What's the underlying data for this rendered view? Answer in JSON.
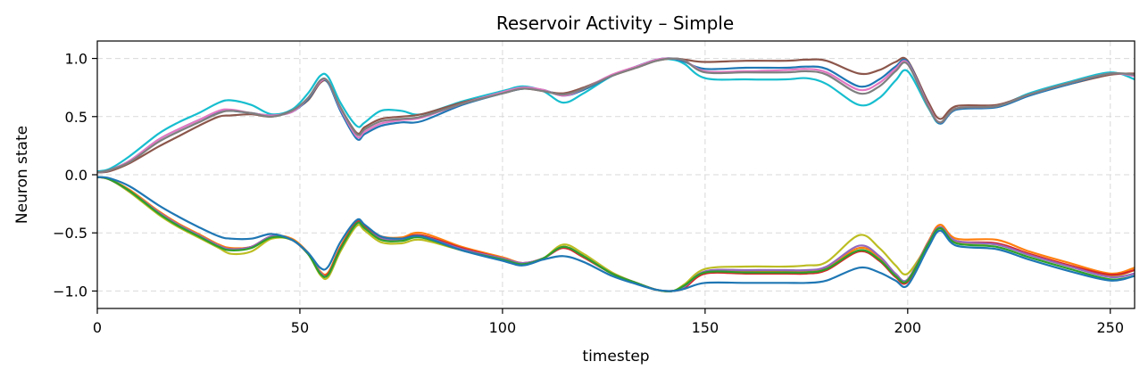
{
  "chart_data": {
    "type": "line",
    "title": "Reservoir Activity – Simple",
    "xlabel": "timestep",
    "ylabel": "Neuron state",
    "xlim": [
      0,
      256
    ],
    "ylim": [
      -1.15,
      1.15
    ],
    "x_ticks": [
      0,
      50,
      100,
      150,
      200,
      250
    ],
    "x_tick_labels": [
      "0",
      "50",
      "100",
      "150",
      "200",
      "250"
    ],
    "y_ticks": [
      1.0,
      0.5,
      0.0,
      -0.5,
      -1.0
    ],
    "y_tick_labels": [
      "1.0",
      "0.5",
      "0.0",
      "−0.5",
      "−1.0"
    ],
    "grid": true,
    "legend": "none",
    "x": [
      0,
      3,
      8,
      15,
      20,
      25,
      30,
      33,
      38,
      43,
      48,
      52,
      55,
      57,
      60,
      64,
      66,
      70,
      75,
      80,
      90,
      100,
      105,
      110,
      115,
      120,
      127,
      133,
      138,
      142,
      145,
      150,
      160,
      170,
      175,
      180,
      188,
      193,
      197,
      200,
      205,
      208,
      212,
      222,
      230,
      240,
      250,
      256
    ],
    "series": [
      {
        "color": "#17becf",
        "values": [
          0.03,
          0.05,
          0.16,
          0.35,
          0.45,
          0.53,
          0.62,
          0.64,
          0.6,
          0.52,
          0.56,
          0.7,
          0.85,
          0.84,
          0.62,
          0.42,
          0.45,
          0.55,
          0.55,
          0.52,
          0.63,
          0.72,
          0.76,
          0.72,
          0.62,
          0.7,
          0.85,
          0.93,
          0.99,
          0.99,
          0.95,
          0.83,
          0.82,
          0.82,
          0.83,
          0.78,
          0.6,
          0.66,
          0.81,
          0.89,
          0.58,
          0.44,
          0.57,
          0.59,
          0.7,
          0.8,
          0.88,
          0.82
        ]
      },
      {
        "color": "#8c564b",
        "values": [
          0.02,
          0.03,
          0.1,
          0.24,
          0.33,
          0.42,
          0.5,
          0.51,
          0.52,
          0.5,
          0.55,
          0.64,
          0.79,
          0.79,
          0.58,
          0.36,
          0.41,
          0.48,
          0.5,
          0.52,
          0.62,
          0.7,
          0.74,
          0.72,
          0.7,
          0.75,
          0.85,
          0.92,
          0.98,
          1.0,
          0.99,
          0.97,
          0.98,
          0.98,
          0.99,
          0.98,
          0.87,
          0.9,
          0.97,
          0.98,
          0.63,
          0.48,
          0.59,
          0.6,
          0.69,
          0.78,
          0.86,
          0.87
        ]
      },
      {
        "color": "#1f77b4",
        "values": [
          0.02,
          0.04,
          0.12,
          0.3,
          0.39,
          0.47,
          0.54,
          0.55,
          0.53,
          0.51,
          0.54,
          0.65,
          0.8,
          0.79,
          0.55,
          0.31,
          0.35,
          0.42,
          0.45,
          0.46,
          0.6,
          0.7,
          0.74,
          0.73,
          0.68,
          0.73,
          0.85,
          0.93,
          0.99,
          1.0,
          0.97,
          0.91,
          0.92,
          0.92,
          0.93,
          0.91,
          0.76,
          0.82,
          0.93,
          0.97,
          0.6,
          0.44,
          0.56,
          0.58,
          0.68,
          0.78,
          0.87,
          0.85
        ]
      },
      {
        "color": "#e377c2",
        "values": [
          0.02,
          0.04,
          0.12,
          0.3,
          0.39,
          0.47,
          0.55,
          0.56,
          0.53,
          0.51,
          0.54,
          0.66,
          0.8,
          0.8,
          0.57,
          0.33,
          0.37,
          0.44,
          0.47,
          0.49,
          0.61,
          0.71,
          0.75,
          0.73,
          0.68,
          0.74,
          0.86,
          0.93,
          0.99,
          1.0,
          0.98,
          0.89,
          0.89,
          0.9,
          0.91,
          0.88,
          0.73,
          0.79,
          0.91,
          0.96,
          0.6,
          0.45,
          0.57,
          0.59,
          0.69,
          0.79,
          0.87,
          0.85
        ]
      },
      {
        "color": "#7f7f7f",
        "values": [
          0.02,
          0.04,
          0.11,
          0.28,
          0.37,
          0.45,
          0.53,
          0.55,
          0.53,
          0.5,
          0.55,
          0.66,
          0.81,
          0.8,
          0.58,
          0.35,
          0.39,
          0.46,
          0.48,
          0.5,
          0.61,
          0.7,
          0.74,
          0.72,
          0.69,
          0.74,
          0.85,
          0.92,
          0.98,
          1.0,
          0.98,
          0.88,
          0.88,
          0.88,
          0.89,
          0.86,
          0.7,
          0.76,
          0.89,
          0.95,
          0.59,
          0.45,
          0.57,
          0.59,
          0.69,
          0.79,
          0.87,
          0.86
        ]
      },
      {
        "color": "#bcbd22",
        "values": [
          -0.02,
          -0.04,
          -0.15,
          -0.34,
          -0.45,
          -0.54,
          -0.63,
          -0.68,
          -0.66,
          -0.55,
          -0.56,
          -0.68,
          -0.86,
          -0.88,
          -0.66,
          -0.44,
          -0.48,
          -0.58,
          -0.59,
          -0.56,
          -0.65,
          -0.73,
          -0.77,
          -0.72,
          -0.6,
          -0.68,
          -0.84,
          -0.93,
          -0.99,
          -1.0,
          -0.94,
          -0.81,
          -0.79,
          -0.79,
          -0.78,
          -0.75,
          -0.52,
          -0.63,
          -0.78,
          -0.85,
          -0.6,
          -0.46,
          -0.58,
          -0.6,
          -0.69,
          -0.79,
          -0.87,
          -0.82
        ]
      },
      {
        "color": "#ff7f0e",
        "values": [
          -0.02,
          -0.04,
          -0.13,
          -0.31,
          -0.42,
          -0.51,
          -0.6,
          -0.63,
          -0.62,
          -0.53,
          -0.55,
          -0.67,
          -0.83,
          -0.84,
          -0.62,
          -0.4,
          -0.44,
          -0.53,
          -0.54,
          -0.5,
          -0.62,
          -0.71,
          -0.76,
          -0.72,
          -0.62,
          -0.7,
          -0.85,
          -0.93,
          -0.99,
          -1.0,
          -0.96,
          -0.84,
          -0.83,
          -0.83,
          -0.83,
          -0.8,
          -0.63,
          -0.71,
          -0.86,
          -0.9,
          -0.58,
          -0.43,
          -0.55,
          -0.56,
          -0.66,
          -0.76,
          -0.85,
          -0.8
        ]
      },
      {
        "color": "#d62728",
        "values": [
          -0.02,
          -0.04,
          -0.14,
          -0.32,
          -0.43,
          -0.52,
          -0.61,
          -0.64,
          -0.62,
          -0.53,
          -0.56,
          -0.68,
          -0.84,
          -0.85,
          -0.63,
          -0.41,
          -0.45,
          -0.54,
          -0.55,
          -0.52,
          -0.63,
          -0.72,
          -0.76,
          -0.72,
          -0.63,
          -0.71,
          -0.85,
          -0.93,
          -0.99,
          -1.0,
          -0.97,
          -0.85,
          -0.85,
          -0.85,
          -0.85,
          -0.82,
          -0.66,
          -0.74,
          -0.88,
          -0.92,
          -0.59,
          -0.45,
          -0.57,
          -0.59,
          -0.68,
          -0.78,
          -0.86,
          -0.82
        ]
      },
      {
        "color": "#9467bd",
        "values": [
          -0.02,
          -0.04,
          -0.14,
          -0.32,
          -0.43,
          -0.52,
          -0.61,
          -0.64,
          -0.62,
          -0.53,
          -0.56,
          -0.68,
          -0.84,
          -0.86,
          -0.64,
          -0.42,
          -0.46,
          -0.55,
          -0.56,
          -0.53,
          -0.64,
          -0.72,
          -0.76,
          -0.72,
          -0.62,
          -0.7,
          -0.85,
          -0.93,
          -0.99,
          -1.0,
          -0.96,
          -0.83,
          -0.82,
          -0.82,
          -0.82,
          -0.79,
          -0.61,
          -0.7,
          -0.85,
          -0.9,
          -0.59,
          -0.45,
          -0.57,
          -0.6,
          -0.69,
          -0.79,
          -0.88,
          -0.85
        ]
      },
      {
        "color": "#2ca02c",
        "values": [
          -0.02,
          -0.04,
          -0.14,
          -0.33,
          -0.44,
          -0.53,
          -0.62,
          -0.65,
          -0.63,
          -0.54,
          -0.56,
          -0.68,
          -0.85,
          -0.86,
          -0.64,
          -0.42,
          -0.46,
          -0.56,
          -0.57,
          -0.54,
          -0.65,
          -0.73,
          -0.77,
          -0.72,
          -0.62,
          -0.7,
          -0.85,
          -0.93,
          -0.99,
          -1.0,
          -0.95,
          -0.84,
          -0.84,
          -0.84,
          -0.84,
          -0.81,
          -0.65,
          -0.73,
          -0.87,
          -0.91,
          -0.6,
          -0.46,
          -0.59,
          -0.62,
          -0.71,
          -0.81,
          -0.9,
          -0.87
        ]
      },
      {
        "color": "#1f77b4",
        "values": [
          -0.02,
          -0.03,
          -0.1,
          -0.26,
          -0.36,
          -0.45,
          -0.53,
          -0.55,
          -0.55,
          -0.51,
          -0.56,
          -0.67,
          -0.8,
          -0.79,
          -0.58,
          -0.39,
          -0.43,
          -0.53,
          -0.55,
          -0.53,
          -0.65,
          -0.74,
          -0.78,
          -0.73,
          -0.7,
          -0.75,
          -0.87,
          -0.94,
          -0.99,
          -1.0,
          -0.98,
          -0.93,
          -0.93,
          -0.93,
          -0.93,
          -0.91,
          -0.8,
          -0.84,
          -0.91,
          -0.95,
          -0.63,
          -0.48,
          -0.61,
          -0.64,
          -0.73,
          -0.83,
          -0.91,
          -0.87
        ]
      }
    ]
  }
}
